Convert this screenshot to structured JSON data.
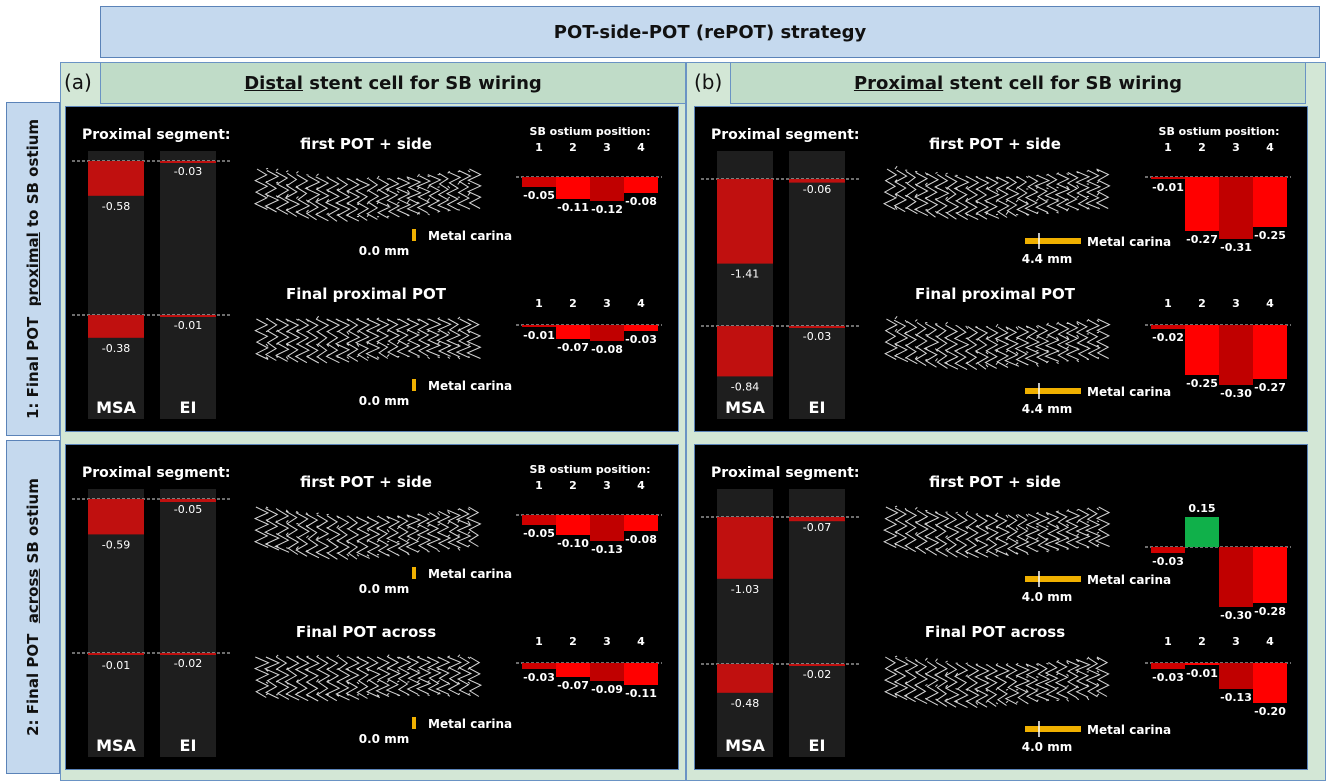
{
  "title": "POT-side-POT (rePOT) strategy",
  "columns": [
    {
      "letter": "(a)",
      "emph": "Distal",
      "rest": " stent cell for SB wiring"
    },
    {
      "letter": "(b)",
      "emph": "Proximal",
      "rest": " stent cell for SB wiring"
    }
  ],
  "rows": [
    {
      "prefix": "1: Final POT  ",
      "emph": "proximal",
      "suffix": " to SB ostium"
    },
    {
      "prefix": "2: Final POT  ",
      "emph": "across",
      "suffix": " SB ostium"
    }
  ],
  "labels": {
    "proximal_segment": "Proximal segment:",
    "sb_ostium_position": "SB ostium position:",
    "msa": "MSA",
    "ei": "EI",
    "metal_carina": "Metal carina",
    "positions": [
      "1",
      "2",
      "3",
      "4"
    ]
  },
  "colors": {
    "msa_bar": "#c0100f",
    "ei_bar": "#c0100f",
    "green": "#10b04a",
    "red_light": "#ff0000",
    "red_mid": "#e00000",
    "red_dark": "#c00000",
    "carina": "#f0b000"
  },
  "panels": [
    {
      "id": "a1",
      "msa": [
        -0.58,
        -0.38
      ],
      "ei": [
        -0.03,
        -0.01
      ],
      "sections": [
        {
          "label": "first POT + side",
          "carina_mm": "0.0 mm",
          "show_pos_header": true,
          "values": [
            -0.05,
            -0.11,
            -0.12,
            -0.08
          ]
        },
        {
          "label": "Final proximal POT",
          "carina_mm": "0.0 mm",
          "show_pos_header": false,
          "values": [
            -0.01,
            -0.07,
            -0.08,
            -0.03
          ]
        }
      ]
    },
    {
      "id": "b1",
      "msa": [
        -1.41,
        -0.84
      ],
      "ei": [
        -0.06,
        -0.03
      ],
      "sections": [
        {
          "label": "first POT + side",
          "carina_mm": "4.4 mm",
          "show_pos_header": true,
          "values": [
            -0.01,
            -0.27,
            -0.31,
            -0.25
          ]
        },
        {
          "label": "Final proximal POT",
          "carina_mm": "4.4 mm",
          "show_pos_header": false,
          "values": [
            -0.02,
            -0.25,
            -0.3,
            -0.27
          ]
        }
      ]
    },
    {
      "id": "a2",
      "msa": [
        -0.59,
        -0.01
      ],
      "ei": [
        -0.05,
        -0.02
      ],
      "sections": [
        {
          "label": "first POT + side",
          "carina_mm": "0.0 mm",
          "show_pos_header": true,
          "values": [
            -0.05,
            -0.1,
            -0.13,
            -0.08
          ]
        },
        {
          "label": "Final POT across",
          "carina_mm": "0.0 mm",
          "show_pos_header": false,
          "values": [
            -0.03,
            -0.07,
            -0.09,
            -0.11
          ]
        }
      ]
    },
    {
      "id": "b2",
      "msa": [
        -1.03,
        -0.48
      ],
      "ei": [
        -0.07,
        -0.02
      ],
      "sections": [
        {
          "label": "first POT + side",
          "carina_mm": "4.0 mm",
          "show_pos_header": false,
          "values": [
            -0.03,
            0.15,
            -0.3,
            -0.28
          ]
        },
        {
          "label": "Final POT across",
          "carina_mm": "4.0 mm",
          "show_pos_header": false,
          "values": [
            -0.03,
            -0.01,
            -0.13,
            -0.2
          ]
        }
      ]
    }
  ],
  "chart_data": [
    {
      "type": "bar",
      "title": "first POT + side",
      "categories": [
        "1",
        "2",
        "3",
        "4"
      ],
      "values": [
        -0.05,
        -0.11,
        -0.12,
        -0.08
      ],
      "xlabel": "SB ostium position:"
    },
    {
      "type": "bar",
      "title": "Final proximal POT",
      "categories": [
        "1",
        "2",
        "3",
        "4"
      ],
      "values": [
        -0.01,
        -0.07,
        -0.08,
        -0.03
      ]
    },
    {
      "type": "bar",
      "title": "first POT + side",
      "categories": [
        "1",
        "2",
        "3",
        "4"
      ],
      "values": [
        -0.01,
        -0.27,
        -0.31,
        -0.25
      ],
      "xlabel": "SB ostium position:"
    },
    {
      "type": "bar",
      "title": "Final proximal POT",
      "categories": [
        "1",
        "2",
        "3",
        "4"
      ],
      "values": [
        -0.02,
        -0.25,
        -0.3,
        -0.27
      ]
    },
    {
      "type": "bar",
      "title": "first POT + side",
      "categories": [
        "1",
        "2",
        "3",
        "4"
      ],
      "values": [
        -0.05,
        -0.1,
        -0.13,
        -0.08
      ],
      "xlabel": "SB ostium position:"
    },
    {
      "type": "bar",
      "title": "Final POT across",
      "categories": [
        "1",
        "2",
        "3",
        "4"
      ],
      "values": [
        -0.03,
        -0.07,
        -0.09,
        -0.11
      ]
    },
    {
      "type": "bar",
      "title": "first POT + side",
      "categories": [
        "1",
        "2",
        "3",
        "4"
      ],
      "values": [
        -0.03,
        0.15,
        -0.3,
        -0.28
      ]
    },
    {
      "type": "bar",
      "title": "Final POT across",
      "categories": [
        "1",
        "2",
        "3",
        "4"
      ],
      "values": [
        -0.03,
        -0.01,
        -0.13,
        -0.2
      ]
    },
    {
      "type": "bar",
      "title": "MSA",
      "categories": [
        "first POT + side",
        "Final proximal POT"
      ],
      "values": [
        -0.58,
        -0.38
      ]
    },
    {
      "type": "bar",
      "title": "EI",
      "categories": [
        "first POT + side",
        "Final proximal POT"
      ],
      "values": [
        -0.03,
        -0.01
      ]
    }
  ]
}
